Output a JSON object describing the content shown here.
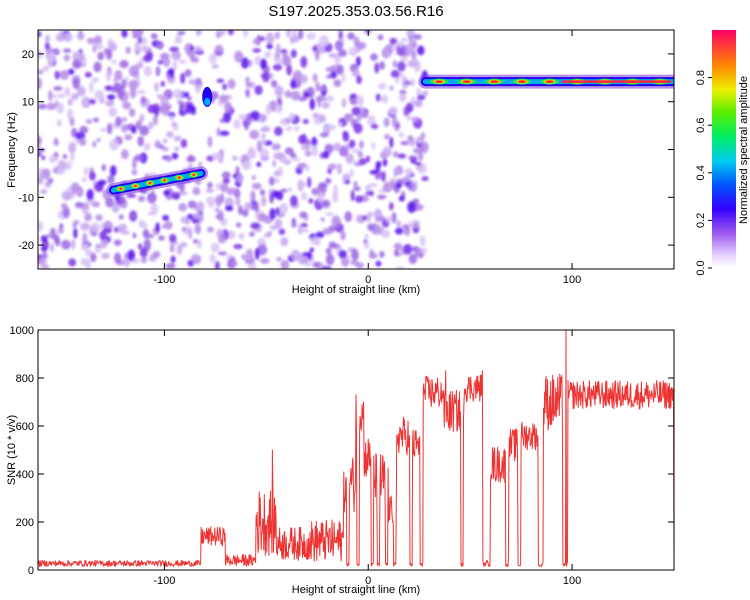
{
  "title": "S197.2025.353.03.56.R16",
  "chart_data": [
    {
      "type": "heatmap",
      "xlabel": "Height of straight line (km)",
      "ylabel": "Frequency (Hz)",
      "xlim": [
        -162,
        150
      ],
      "ylim": [
        -25,
        25
      ],
      "xticks": [
        -100,
        0,
        100
      ],
      "yticks": [
        -20,
        -10,
        0,
        10,
        20
      ],
      "grid": false,
      "colorbar": {
        "label": "Normalized spectral amplitude",
        "range": [
          0,
          1
        ],
        "ticks": [
          0.0,
          0.2,
          0.4,
          0.6,
          0.8
        ],
        "tick_labels": [
          "0.0",
          "0.2",
          "0.4",
          "0.6",
          "0.8"
        ]
      },
      "tones": [
        {
          "x_start": -125,
          "x_end": -82,
          "freq_start": -8.5,
          "freq_end": -5
        },
        {
          "x_start": 28,
          "x_end": 150,
          "freq_start": 14.2,
          "freq_end": 14.2
        }
      ],
      "noise_bands": [
        {
          "x_start": -162,
          "x_end": -82
        },
        {
          "x_start": -78,
          "x_end": 28
        }
      ]
    },
    {
      "type": "line",
      "xlabel": "Height of straight line (km)",
      "ylabel": "SNR (10 * v/v)",
      "xlim": [
        -162,
        150
      ],
      "ylim": [
        0,
        1000
      ],
      "xticks": [
        -100,
        0,
        100
      ],
      "yticks": [
        0,
        200,
        400,
        600,
        800,
        1000
      ],
      "grid": false,
      "series_color": "#ee3333",
      "baseline": 15,
      "segments": [
        {
          "x_start": -82,
          "x_end": -70,
          "level": 140,
          "noise": 40
        },
        {
          "x_start": -70,
          "x_end": -55,
          "level": 40,
          "noise": 25
        },
        {
          "x_start": -55,
          "x_end": -45,
          "level": 200,
          "noise": 140
        },
        {
          "x_start": -45,
          "x_end": -28,
          "level": 110,
          "noise": 70
        },
        {
          "x_start": -28,
          "x_end": -12,
          "level": 120,
          "noise": 90
        },
        {
          "x_start": -12,
          "x_end": -6,
          "level": 360,
          "noise": 120
        },
        {
          "x_start": -6,
          "x_end": -2,
          "level": 650,
          "noise": 80
        },
        {
          "x_start": -2,
          "x_end": 3,
          "level": 470,
          "noise": 90
        },
        {
          "x_start": 3,
          "x_end": 10,
          "level": 380,
          "noise": 110
        },
        {
          "x_start": 10,
          "x_end": 14,
          "level": 250,
          "noise": 60
        },
        {
          "x_start": 14,
          "x_end": 20,
          "level": 560,
          "noise": 80
        },
        {
          "x_start": 20,
          "x_end": 26,
          "level": 520,
          "noise": 70
        },
        {
          "x_start": 27,
          "x_end": 37,
          "level": 740,
          "noise": 70
        },
        {
          "x_start": 37,
          "x_end": 47,
          "level": 660,
          "noise": 90
        },
        {
          "x_start": 47,
          "x_end": 56,
          "level": 760,
          "noise": 60
        },
        {
          "x_start": 60,
          "x_end": 68,
          "level": 440,
          "noise": 80
        },
        {
          "x_start": 69,
          "x_end": 74,
          "level": 520,
          "noise": 70
        },
        {
          "x_start": 75,
          "x_end": 84,
          "level": 560,
          "noise": 60
        },
        {
          "x_start": 86,
          "x_end": 96,
          "level": 700,
          "noise": 120
        },
        {
          "x_start": 98,
          "x_end": 150,
          "level": 730,
          "noise": 60
        }
      ],
      "dropouts": [
        -10,
        -5,
        2,
        5,
        9,
        13,
        21,
        26,
        46,
        57,
        68,
        74,
        84,
        85,
        96,
        97
      ],
      "peaks": [
        {
          "x": -47,
          "y": 500
        },
        {
          "x": -6,
          "y": 730
        },
        {
          "x": 97,
          "y": 1000
        },
        {
          "x": 56,
          "y": 830
        },
        {
          "x": 38,
          "y": 830
        }
      ]
    }
  ]
}
